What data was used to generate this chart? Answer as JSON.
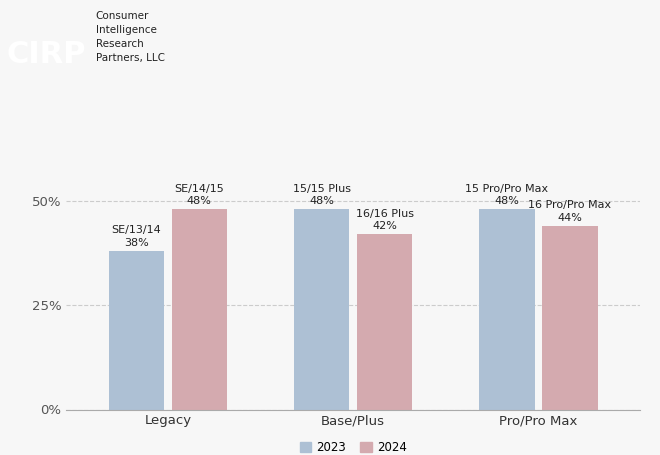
{
  "categories": [
    "Legacy",
    "Base/Plus",
    "Pro/Pro Max"
  ],
  "values_2023": [
    38,
    48,
    48
  ],
  "values_2024": [
    48,
    42,
    44
  ],
  "labels_2023": [
    "SE/13/14",
    "15/15 Plus",
    "15 Pro/Pro Max"
  ],
  "labels_2024": [
    "SE/14/15",
    "16/16 Plus",
    "16 Pro/Pro Max"
  ],
  "color_2023": "#adc0d4",
  "color_2024": "#d4aaaf",
  "bar_width": 0.3,
  "ylim": [
    0,
    60
  ],
  "yticks": [
    0,
    25,
    50
  ],
  "ytick_labels": [
    "0%",
    "25%",
    "50%"
  ],
  "legend_2023": "2023",
  "legend_2024": "2024",
  "background_color": "#f7f7f7",
  "grid_color": "#cccccc",
  "label_fontsize": 8.0,
  "axis_label_fontsize": 9.5,
  "legend_fontsize": 8.5,
  "cirp_text": "Consumer\nIntelligence\nResearch\nPartners, LLC",
  "cirp_color": "#E8612C"
}
